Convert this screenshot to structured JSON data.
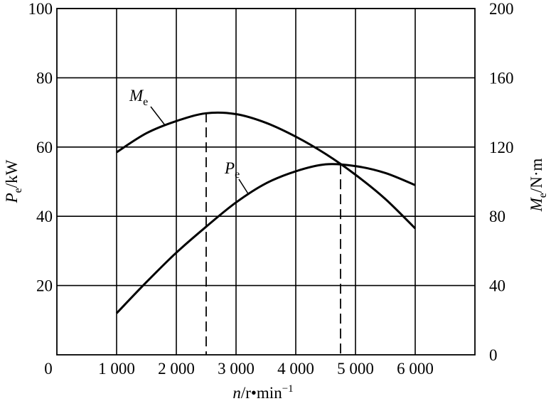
{
  "chart_data": {
    "type": "line",
    "x_label": {
      "symbol": "n",
      "unit": "/r•min",
      "superscript": "−1"
    },
    "y_label": {
      "symbol": "P",
      "subscript": "e",
      "unit": "/kW"
    },
    "y2_label": {
      "symbol": "M",
      "subscript": "e",
      "unit": "/N·m"
    },
    "x": [
      1000,
      1500,
      2000,
      2500,
      3000,
      3500,
      4000,
      4500,
      5000,
      5500,
      6000
    ],
    "series": [
      {
        "name": {
          "symbol": "M",
          "subscript": "e"
        },
        "color": "#000000",
        "axis": "y2",
        "values": [
          117,
          128,
          135,
          139.5,
          139,
          134,
          126,
          116,
          104,
          90,
          73
        ]
      },
      {
        "name": {
          "symbol": "P",
          "subscript": "e"
        },
        "color": "#000000",
        "values": [
          12,
          21,
          29.5,
          37,
          44,
          49.5,
          53,
          55,
          54.5,
          52.5,
          49
        ]
      }
    ],
    "dashed_lines": [
      {
        "x": 2500,
        "y": 70
      },
      {
        "x": 4750,
        "y": 55
      }
    ],
    "xlim": [
      0,
      7000
    ],
    "xticks": [
      {
        "value": 0,
        "label": "0"
      },
      {
        "value": 1000,
        "label": "1 000"
      },
      {
        "value": 2000,
        "label": "2 000"
      },
      {
        "value": 3000,
        "label": "3 000"
      },
      {
        "value": 4000,
        "label": "4 000"
      },
      {
        "value": 5000,
        "label": "5 000"
      },
      {
        "value": 6000,
        "label": "6 000"
      }
    ],
    "ylim": [
      0,
      100
    ],
    "yticks": [
      20,
      40,
      60,
      80,
      100
    ],
    "y2lim": [
      0,
      200
    ],
    "y2ticks": [
      0,
      40,
      80,
      120,
      160,
      200
    ],
    "grid": true
  }
}
